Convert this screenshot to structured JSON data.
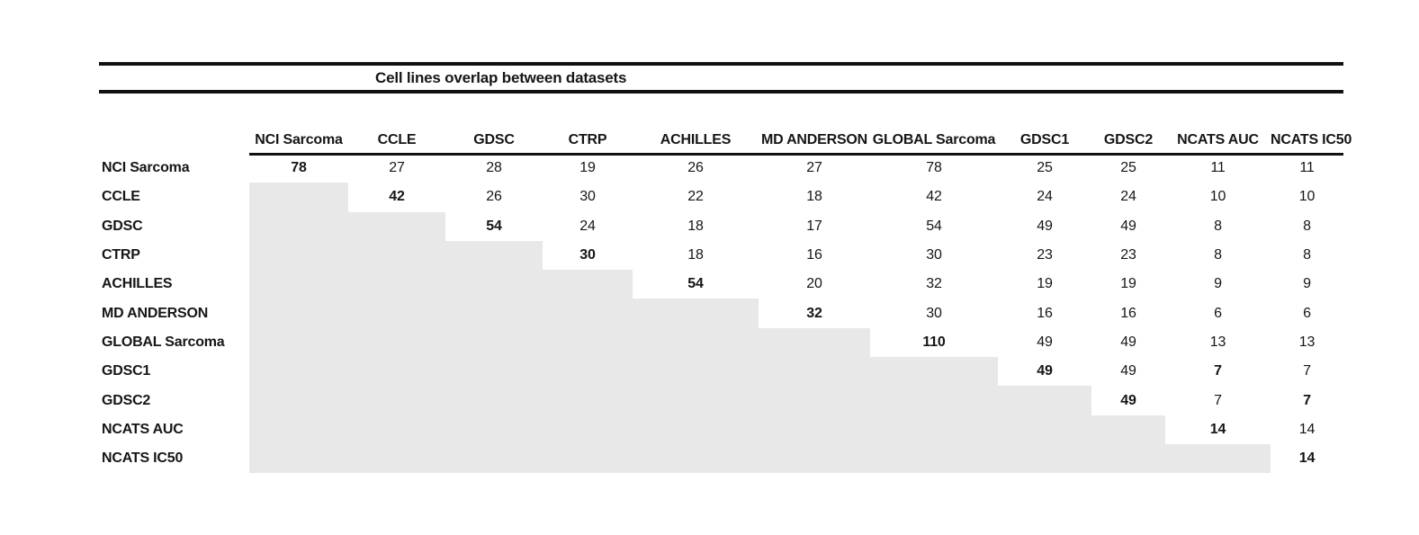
{
  "title": "Cell lines overlap between datasets",
  "colors": {
    "shade": "#e8e8e8",
    "rule": "#111111",
    "text": "#161616"
  },
  "chart_data": {
    "type": "table",
    "title": "Cell lines overlap between datasets",
    "col_labels": [
      "NCI Sarcoma",
      "CCLE",
      "GDSC",
      "CTRP",
      "ACHILLES",
      "MD ANDERSON",
      "GLOBAL Sarcoma",
      "GDSC1",
      "GDSC2",
      "NCATS AUC",
      "NCATS IC50"
    ],
    "row_labels": [
      "NCI Sarcoma",
      "CCLE",
      "GDSC",
      "CTRP",
      "ACHILLES",
      "MD ANDERSON",
      "GLOBAL Sarcoma",
      "GDSC1",
      "GDSC2",
      "NCATS AUC",
      "NCATS IC50"
    ],
    "matrix": [
      [
        78,
        27,
        28,
        19,
        26,
        27,
        78,
        25,
        25,
        11,
        11
      ],
      [
        null,
        42,
        26,
        30,
        22,
        18,
        42,
        24,
        24,
        10,
        10
      ],
      [
        null,
        null,
        54,
        24,
        18,
        17,
        54,
        49,
        49,
        8,
        8
      ],
      [
        null,
        null,
        null,
        30,
        18,
        16,
        30,
        23,
        23,
        8,
        8
      ],
      [
        null,
        null,
        null,
        null,
        54,
        20,
        32,
        19,
        19,
        9,
        9
      ],
      [
        null,
        null,
        null,
        null,
        null,
        32,
        30,
        16,
        16,
        6,
        6
      ],
      [
        null,
        null,
        null,
        null,
        null,
        null,
        110,
        49,
        49,
        13,
        13
      ],
      [
        null,
        null,
        null,
        null,
        null,
        null,
        null,
        49,
        49,
        7,
        7
      ],
      [
        null,
        null,
        null,
        null,
        null,
        null,
        null,
        null,
        49,
        7,
        7
      ],
      [
        null,
        null,
        null,
        null,
        null,
        null,
        null,
        null,
        null,
        14,
        14
      ],
      [
        null,
        null,
        null,
        null,
        null,
        null,
        null,
        null,
        null,
        null,
        14
      ]
    ],
    "bold_cells": [
      [
        0,
        0
      ],
      [
        1,
        1
      ],
      [
        2,
        2
      ],
      [
        3,
        3
      ],
      [
        4,
        4
      ],
      [
        5,
        5
      ],
      [
        6,
        6
      ],
      [
        7,
        7
      ],
      [
        8,
        8
      ],
      [
        9,
        9
      ],
      [
        10,
        10
      ],
      [
        7,
        9
      ],
      [
        8,
        10
      ]
    ],
    "shading_note": "lower-triangle cells are shaded gray and empty"
  }
}
